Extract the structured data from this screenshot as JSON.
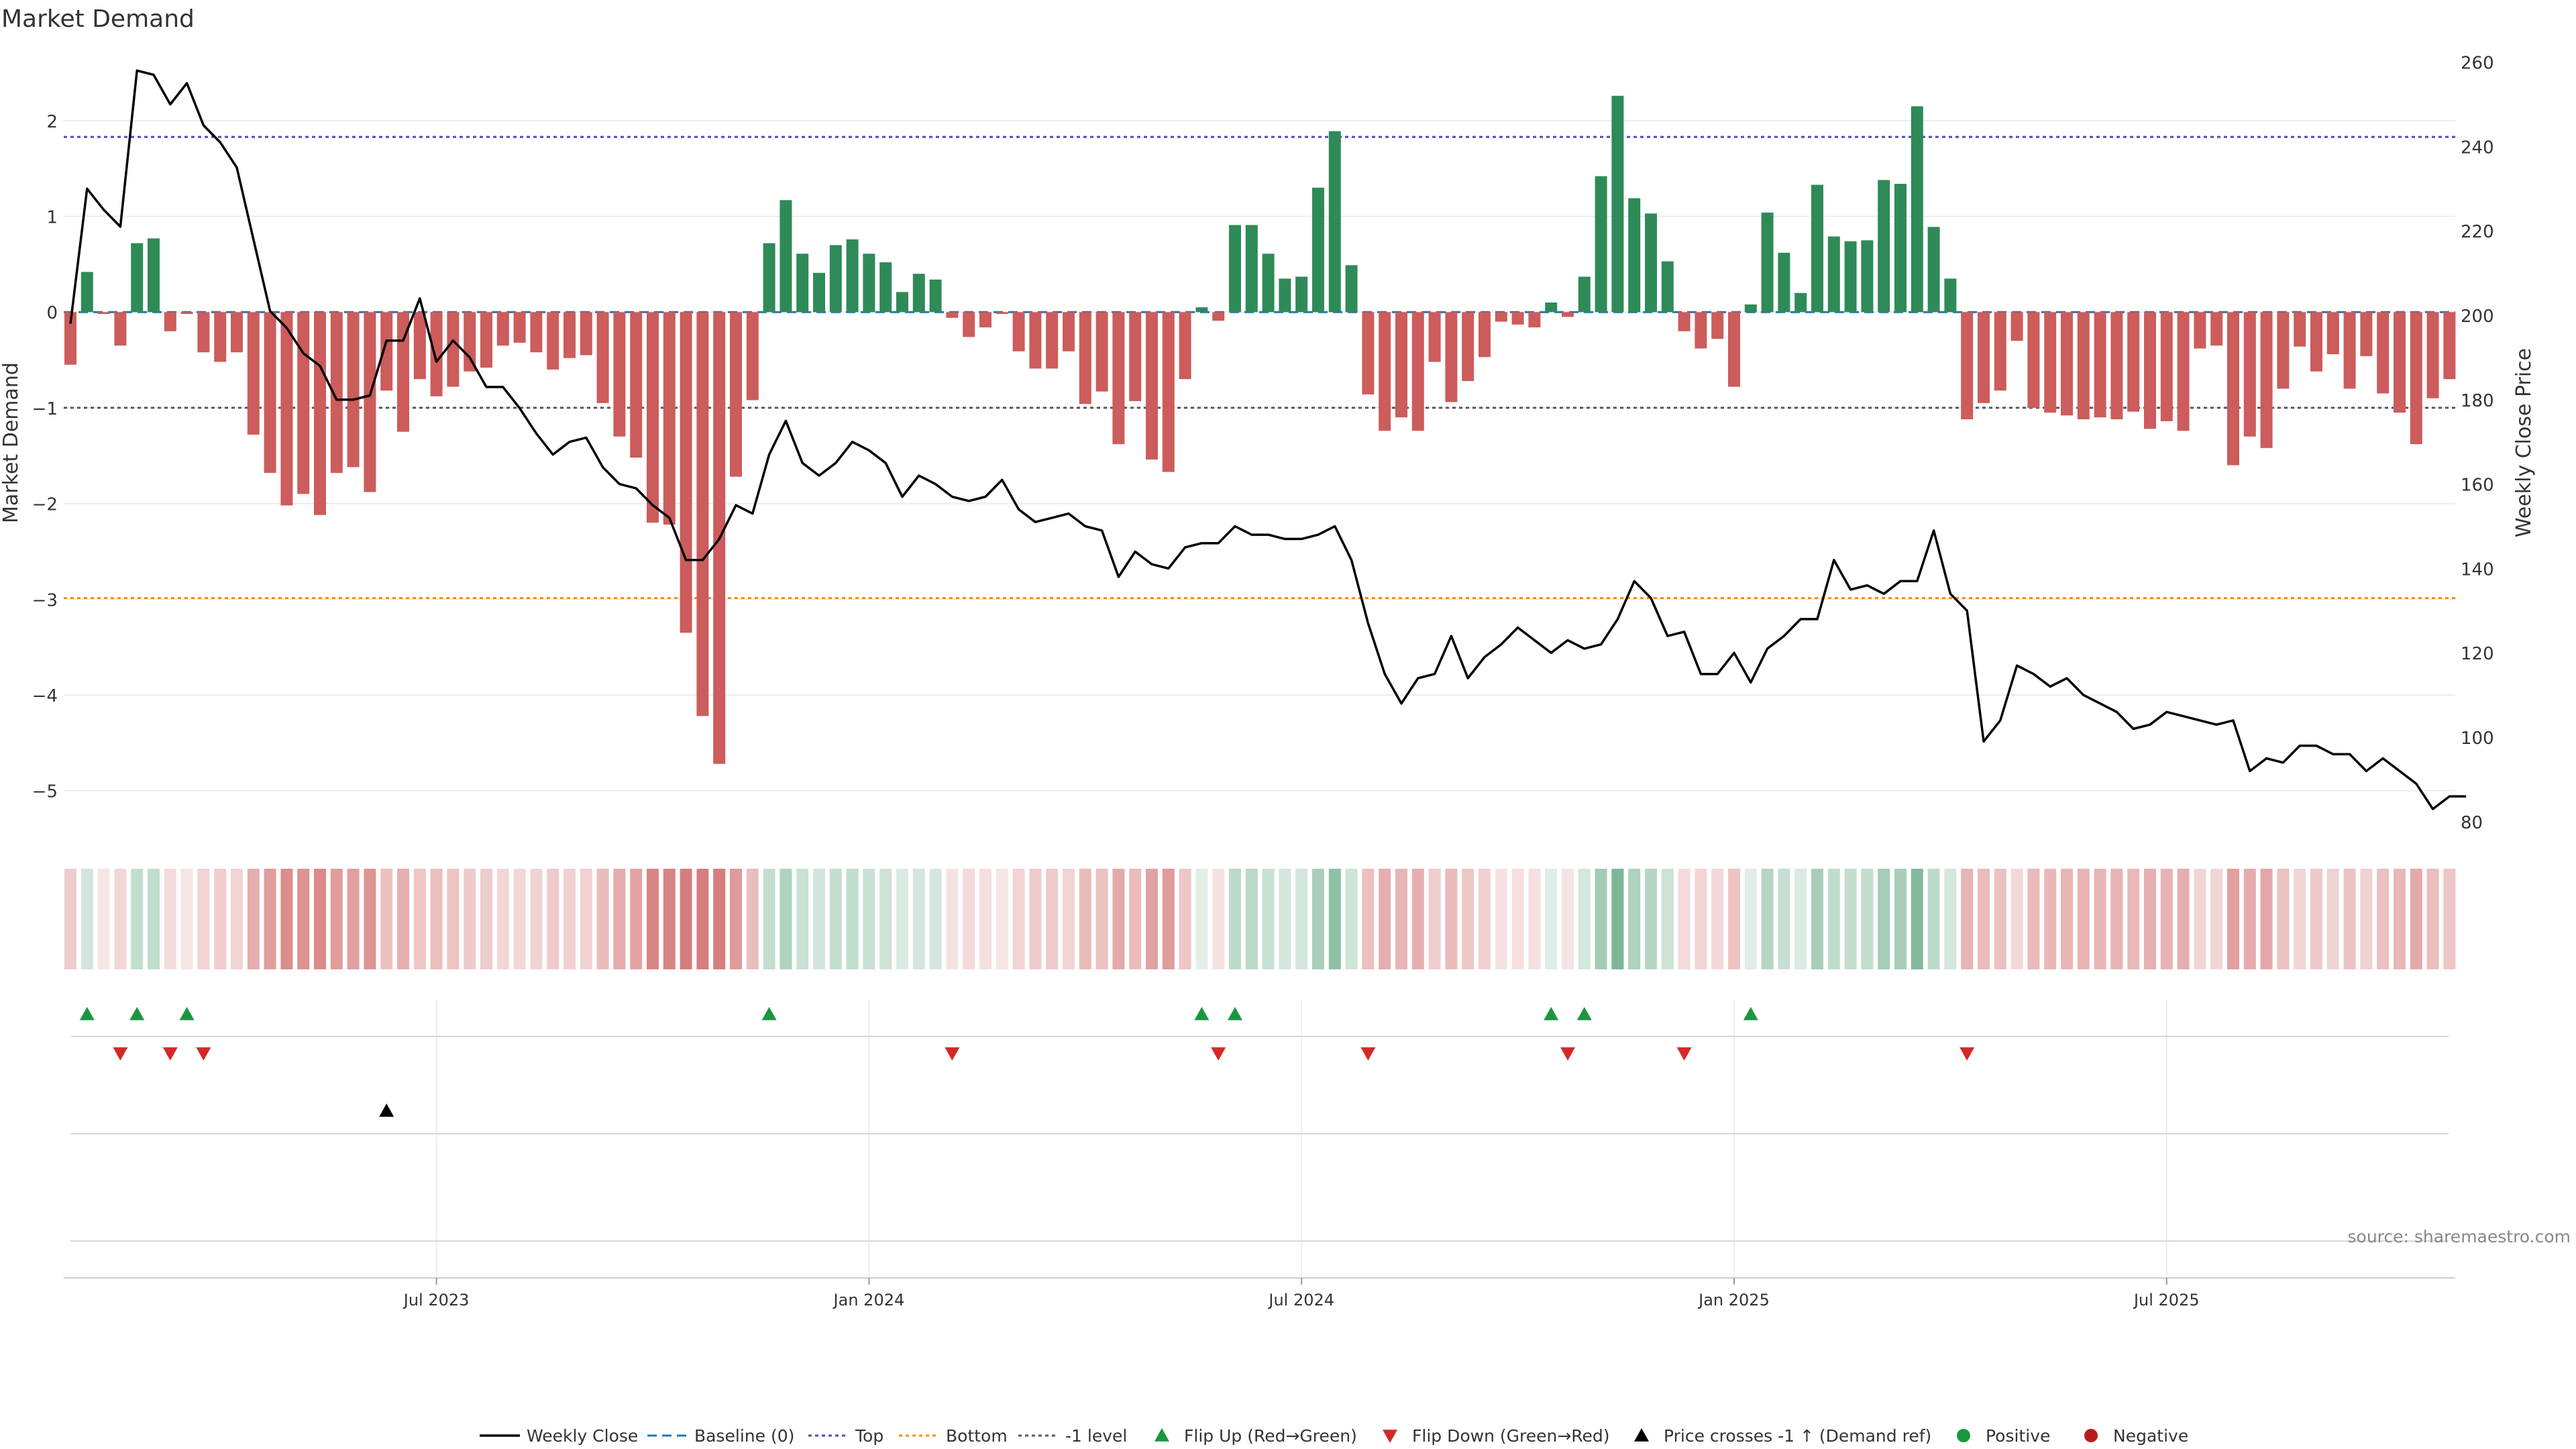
{
  "chart_data": {
    "type": "bar+line",
    "title": "Market Demand",
    "ylabel_left": "Market Demand",
    "ylabel_right": "Weekly Close Price",
    "ylim_left": [
      -5.5,
      2.7
    ],
    "ylim_right": [
      76,
      262
    ],
    "yticks_left": [
      {
        "v": 2,
        "label": "2"
      },
      {
        "v": 1,
        "label": "1"
      },
      {
        "v": 0,
        "label": "0"
      },
      {
        "v": -1,
        "label": "−1"
      },
      {
        "v": -2,
        "label": "−2"
      },
      {
        "v": -3,
        "label": "−3"
      },
      {
        "v": -4,
        "label": "−4"
      },
      {
        "v": -5,
        "label": "−5"
      }
    ],
    "yticks_right": [
      {
        "v": 260,
        "label": "260"
      },
      {
        "v": 240,
        "label": "240"
      },
      {
        "v": 220,
        "label": "220"
      },
      {
        "v": 200,
        "label": "200"
      },
      {
        "v": 180,
        "label": "180"
      },
      {
        "v": 160,
        "label": "160"
      },
      {
        "v": 140,
        "label": "140"
      },
      {
        "v": 120,
        "label": "120"
      },
      {
        "v": 100,
        "label": "100"
      },
      {
        "v": 80,
        "label": "80"
      }
    ],
    "xticks": [
      {
        "week": 22,
        "label": "Jul 2023"
      },
      {
        "week": 48,
        "label": "Jan 2024"
      },
      {
        "week": 74,
        "label": "Jul 2024"
      },
      {
        "week": 100,
        "label": "Jan 2025"
      },
      {
        "week": 126,
        "label": "Jul 2025"
      }
    ],
    "reference_lines": {
      "top": 1.83,
      "bottom_price": 133,
      "minus_one": -1
    },
    "demand": [
      -0.55,
      0.42,
      -0.02,
      -0.35,
      0.72,
      0.77,
      -0.2,
      -0.02,
      -0.42,
      -0.52,
      -0.42,
      -1.28,
      -1.68,
      -2.02,
      -1.9,
      -2.12,
      -1.68,
      -1.62,
      -1.88,
      -0.82,
      -1.25,
      -0.7,
      -0.88,
      -0.78,
      -0.62,
      -0.58,
      -0.35,
      -0.32,
      -0.42,
      -0.6,
      -0.48,
      -0.45,
      -0.95,
      -1.3,
      -1.52,
      -2.2,
      -2.22,
      -3.35,
      -4.22,
      -4.72,
      -1.72,
      -0.92,
      0.72,
      1.17,
      0.61,
      0.41,
      0.7,
      0.76,
      0.61,
      0.52,
      0.21,
      0.4,
      0.34,
      -0.06,
      -0.26,
      -0.16,
      -0.02,
      -0.41,
      -0.59,
      -0.59,
      -0.41,
      -0.96,
      -0.83,
      -1.38,
      -0.93,
      -1.54,
      -1.67,
      -0.7,
      0.05,
      -0.09,
      0.91,
      0.91,
      0.61,
      0.35,
      0.37,
      1.3,
      1.89,
      0.49,
      -0.86,
      -1.24,
      -1.1,
      -1.24,
      -0.52,
      -0.94,
      -0.72,
      -0.47,
      -0.1,
      -0.13,
      -0.16,
      0.1,
      -0.05,
      0.37,
      1.42,
      2.26,
      1.19,
      1.03,
      0.53,
      -0.2,
      -0.38,
      -0.28,
      -0.78,
      0.08,
      1.04,
      0.62,
      0.2,
      1.33,
      0.79,
      0.74,
      0.75,
      1.38,
      1.34,
      2.15,
      0.89,
      0.35,
      -1.12,
      -0.95,
      -0.82,
      -0.3,
      -1.0,
      -1.05,
      -1.08,
      -1.12,
      -1.1,
      -1.12,
      -1.04,
      -1.22,
      -1.14,
      -1.24,
      -0.38,
      -0.35,
      -1.6,
      -1.3,
      -1.42,
      -0.8,
      -0.36,
      -0.62,
      -0.44,
      -0.8,
      -0.46,
      -0.85,
      -1.05,
      -1.38,
      -0.9,
      -0.7
    ],
    "weekly_close": [
      198,
      230,
      225,
      221,
      258,
      257,
      250,
      255,
      245,
      241,
      235,
      218,
      201,
      197,
      191,
      188,
      180,
      180,
      181,
      194,
      194,
      204,
      189,
      194,
      190,
      183,
      183,
      178,
      172,
      167,
      170,
      171,
      164,
      160,
      159,
      155,
      152,
      142,
      142,
      147,
      155,
      153,
      167,
      175,
      165,
      162,
      165,
      170,
      168,
      165,
      157,
      162,
      160,
      157,
      156,
      157,
      161,
      154,
      151,
      152,
      153,
      150,
      149,
      138,
      144,
      141,
      140,
      145,
      146,
      146,
      150,
      148,
      148,
      147,
      147,
      148,
      150,
      142,
      127,
      115,
      108,
      114,
      115,
      124,
      114,
      119,
      122,
      126,
      123,
      120,
      123,
      121,
      122,
      128,
      137,
      133,
      124,
      125,
      115,
      115,
      120,
      113,
      121,
      124,
      128,
      128,
      142,
      135,
      136,
      134,
      137,
      137,
      149,
      134,
      130,
      99,
      104,
      117,
      115,
      112,
      114,
      110,
      108,
      106,
      102,
      103,
      106,
      105,
      104,
      103,
      104,
      92,
      95,
      94,
      98,
      98,
      96,
      96,
      92,
      95,
      92,
      89,
      83,
      86,
      86
    ],
    "flip_up_weeks": [
      1,
      4,
      7,
      42,
      68,
      70,
      89,
      91,
      101
    ],
    "flip_down_weeks": [
      3,
      6,
      8,
      53,
      69,
      78,
      90,
      97,
      114
    ],
    "price_cross_weeks": [
      19
    ],
    "legend": [
      {
        "key": "weekly-close",
        "label": "Weekly Close"
      },
      {
        "key": "baseline",
        "label": "Baseline (0)"
      },
      {
        "key": "top",
        "label": "Top"
      },
      {
        "key": "bottom",
        "label": "Bottom"
      },
      {
        "key": "minus-one",
        "label": "-1 level"
      },
      {
        "key": "flip-up",
        "label": "Flip Up (Red→Green)"
      },
      {
        "key": "flip-down",
        "label": "Flip Down (Green→Red)"
      },
      {
        "key": "price-cross",
        "label": "Price crosses -1 ↑ (Demand ref)"
      },
      {
        "key": "positive",
        "label": "Positive"
      },
      {
        "key": "negative",
        "label": "Negative"
      }
    ],
    "source": "source: sharemaestro.com"
  },
  "colors": {
    "positive": "#2e8b57",
    "negative": "#cd5c5c",
    "line": "#000000",
    "top": "#4b4bbb",
    "bottom": "#ff8c00",
    "minus_one": "#555566",
    "baseline": "#1f77b4",
    "flip_up": "#1a9641",
    "flip_down": "#d62728",
    "legend_positive": "#1a9641",
    "legend_negative": "#b71c1c"
  }
}
